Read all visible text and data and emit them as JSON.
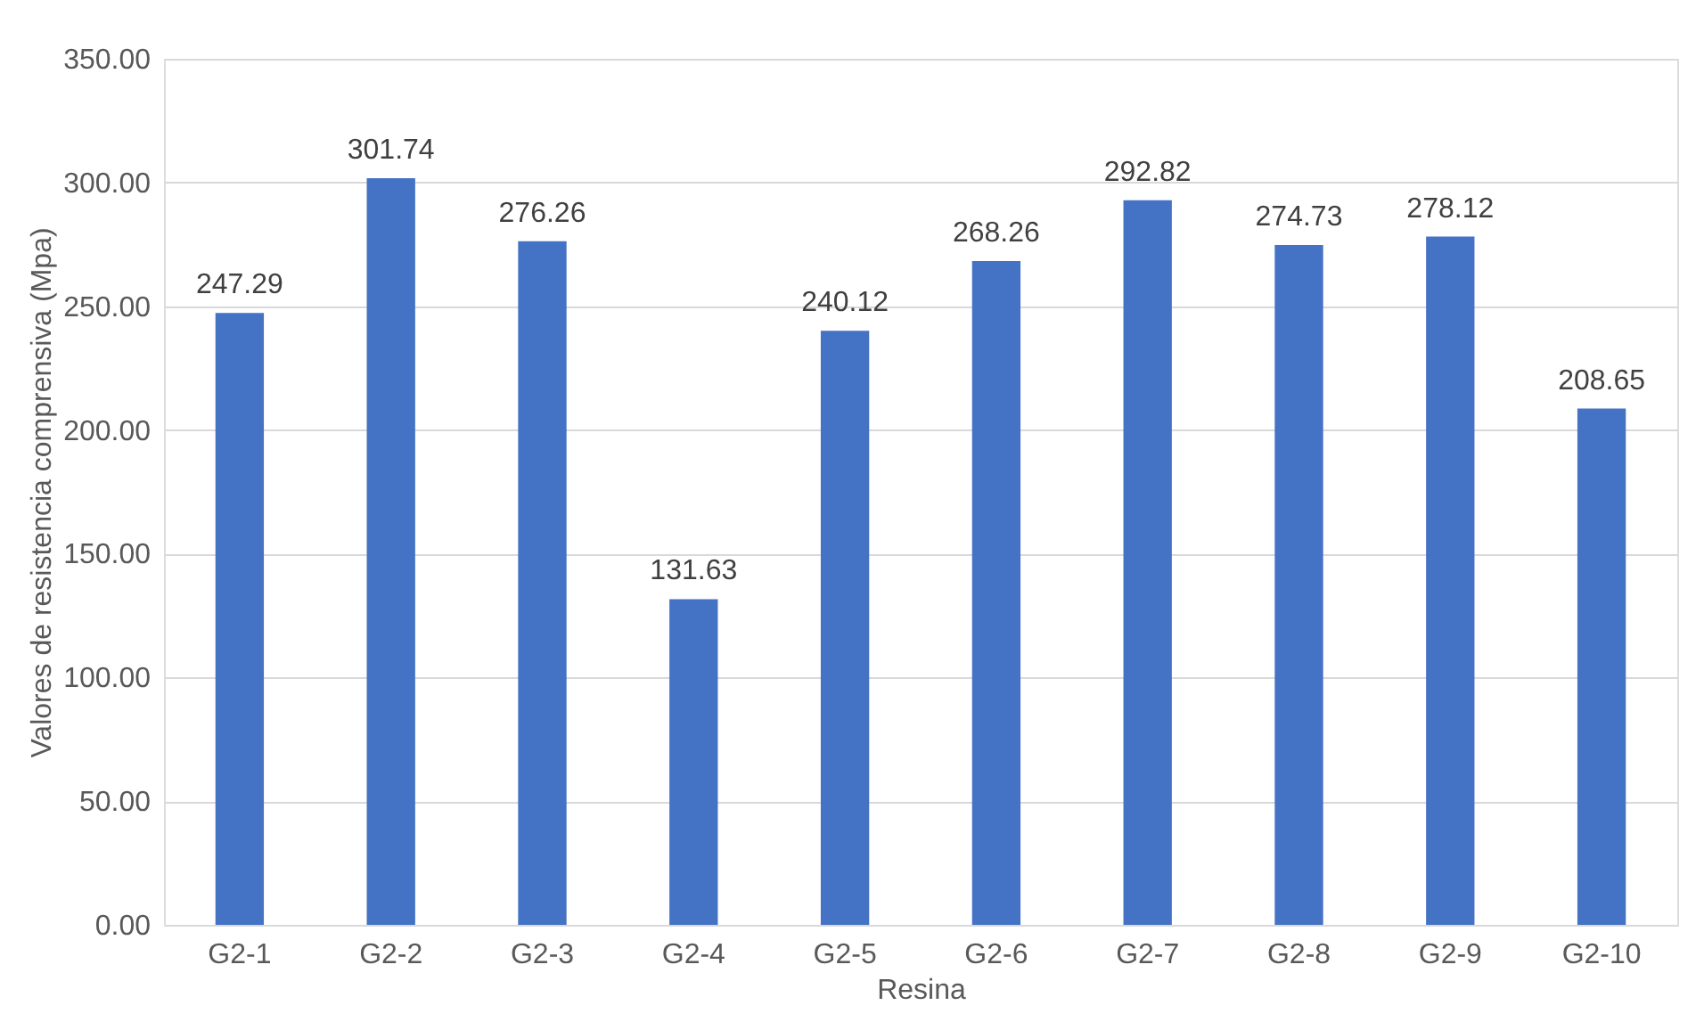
{
  "chart_data": {
    "type": "bar",
    "xlabel": "Resina",
    "ylabel": "Valores de resistencia comprensiva (Mpa)",
    "categories": [
      "G2-1",
      "G2-2",
      "G2-3",
      "G2-4",
      "G2-5",
      "G2-6",
      "G2-7",
      "G2-8",
      "G2-9",
      "G2-10"
    ],
    "values": [
      247.29,
      301.74,
      276.26,
      131.63,
      240.12,
      268.26,
      292.82,
      274.73,
      278.12,
      208.65
    ],
    "color": "#4472c4",
    "ylim": [
      0,
      350
    ],
    "yticks": [
      {
        "value": 0,
        "label": "0.00"
      },
      {
        "value": 50,
        "label": "50.00"
      },
      {
        "value": 100,
        "label": "100.00"
      },
      {
        "value": 150,
        "label": "150.00"
      },
      {
        "value": 200,
        "label": "200.00"
      },
      {
        "value": 250,
        "label": "250.00"
      },
      {
        "value": 300,
        "label": "300.00"
      },
      {
        "value": 350,
        "label": "350.00"
      }
    ],
    "grid": "y",
    "data_labels": true
  }
}
